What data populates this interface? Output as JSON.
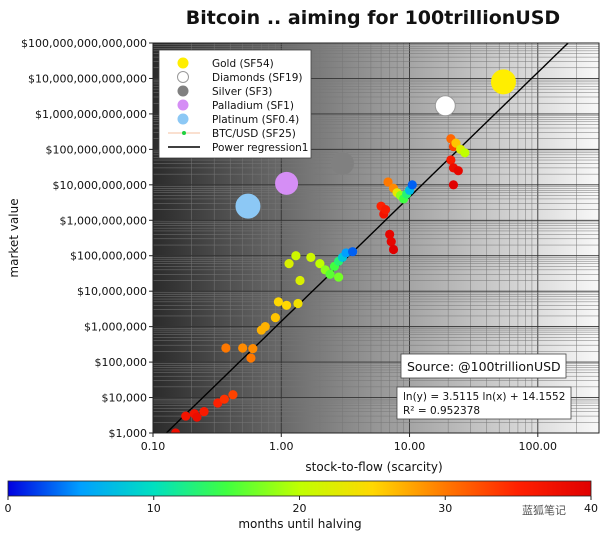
{
  "chart_data": {
    "type": "scatter",
    "title": "Bitcoin .. aiming for 100trillionUSD",
    "xlabel": "stock-to-flow (scarcity)",
    "ylabel": "market value",
    "x_scale": "log",
    "y_scale": "log",
    "xlim": [
      0.1,
      300
    ],
    "ylim": [
      1000,
      100000000000000
    ],
    "grid": true,
    "legend_position": "top-left",
    "x_ticks": [
      "0.10",
      "1.00",
      "10.00",
      "100.00"
    ],
    "y_ticks": [
      "$1,000",
      "$10,000",
      "$100,000",
      "$1,000,000",
      "$10,000,000",
      "$100,000,000",
      "$1,000,000,000",
      "$10,000,000,000",
      "$100,000,000,000",
      "$1,000,000,000,000",
      "$10,000,000,000,000",
      "$100,000,000,000,000"
    ],
    "series": [
      {
        "name": "Gold (SF54)",
        "color": "#ffee00",
        "edge": "#ffee00",
        "points": [
          {
            "x": 54,
            "y": 8000000000000
          }
        ]
      },
      {
        "name": "Diamonds (SF19)",
        "color": "#ffffff",
        "edge": "#999999",
        "points": [
          {
            "x": 19,
            "y": 1700000000000
          }
        ]
      },
      {
        "name": "Silver (SF3)",
        "color": "#808080",
        "edge": "#808080",
        "points": [
          {
            "x": 3,
            "y": 40000000000
          }
        ]
      },
      {
        "name": "Palladium (SF1)",
        "color": "#d58ef5",
        "edge": "#d58ef5",
        "points": [
          {
            "x": 1.1,
            "y": 11000000000
          }
        ]
      },
      {
        "name": "Platinum (SF0.4)",
        "color": "#8cc8f5",
        "edge": "#8cc8f5",
        "points": [
          {
            "x": 0.55,
            "y": 2500000000
          }
        ]
      }
    ],
    "btc_series": {
      "name": "BTC/USD (SF25)",
      "points": [
        {
          "x": 0.15,
          "y": 1000,
          "m": 38
        },
        {
          "x": 0.18,
          "y": 3000,
          "m": 37
        },
        {
          "x": 0.21,
          "y": 3500,
          "m": 37
        },
        {
          "x": 0.22,
          "y": 2800,
          "m": 38
        },
        {
          "x": 0.25,
          "y": 4000,
          "m": 36
        },
        {
          "x": 0.32,
          "y": 7000,
          "m": 35
        },
        {
          "x": 0.36,
          "y": 9000,
          "m": 34
        },
        {
          "x": 0.42,
          "y": 12000,
          "m": 33
        },
        {
          "x": 0.37,
          "y": 250000,
          "m": 30
        },
        {
          "x": 0.5,
          "y": 250000,
          "m": 29
        },
        {
          "x": 0.58,
          "y": 130000,
          "m": 30
        },
        {
          "x": 0.6,
          "y": 240000,
          "m": 29
        },
        {
          "x": 0.7,
          "y": 800000,
          "m": 27
        },
        {
          "x": 0.75,
          "y": 1000000,
          "m": 27
        },
        {
          "x": 0.9,
          "y": 1800000,
          "m": 26
        },
        {
          "x": 0.95,
          "y": 5000000,
          "m": 25
        },
        {
          "x": 1.1,
          "y": 4000000,
          "m": 25
        },
        {
          "x": 1.15,
          "y": 60000000,
          "m": 22
        },
        {
          "x": 1.3,
          "y": 100000000,
          "m": 21
        },
        {
          "x": 1.35,
          "y": 4500000,
          "m": 24
        },
        {
          "x": 1.4,
          "y": 20000000,
          "m": 22
        },
        {
          "x": 1.7,
          "y": 90000000,
          "m": 21
        },
        {
          "x": 2.0,
          "y": 60000000,
          "m": 20
        },
        {
          "x": 2.2,
          "y": 40000000,
          "m": 18
        },
        {
          "x": 2.4,
          "y": 30000000,
          "m": 16
        },
        {
          "x": 2.6,
          "y": 50000000,
          "m": 15
        },
        {
          "x": 2.8,
          "y": 70000000,
          "m": 13
        },
        {
          "x": 3.0,
          "y": 90000000,
          "m": 8
        },
        {
          "x": 3.2,
          "y": 120000000,
          "m": 5
        },
        {
          "x": 3.6,
          "y": 130000000,
          "m": 3
        },
        {
          "x": 2.8,
          "y": 25000000,
          "m": 17
        },
        {
          "x": 6.0,
          "y": 2500000000,
          "m": 35
        },
        {
          "x": 6.3,
          "y": 1500000000,
          "m": 37
        },
        {
          "x": 6.5,
          "y": 2000000000,
          "m": 36
        },
        {
          "x": 7.0,
          "y": 400000000,
          "m": 39
        },
        {
          "x": 7.2,
          "y": 250000000,
          "m": 39
        },
        {
          "x": 7.5,
          "y": 150000000,
          "m": 40
        },
        {
          "x": 6.8,
          "y": 12000000000,
          "m": 30
        },
        {
          "x": 7.5,
          "y": 8000000000,
          "m": 29
        },
        {
          "x": 8.0,
          "y": 6000000000,
          "m": 23
        },
        {
          "x": 8.5,
          "y": 5000000000,
          "m": 18
        },
        {
          "x": 9.0,
          "y": 4000000000,
          "m": 15
        },
        {
          "x": 9.5,
          "y": 5500000000,
          "m": 13
        },
        {
          "x": 10.0,
          "y": 7000000000,
          "m": 7
        },
        {
          "x": 10.5,
          "y": 10000000000,
          "m": 3
        },
        {
          "x": 21,
          "y": 200000000000,
          "m": 31
        },
        {
          "x": 22,
          "y": 120000000000,
          "m": 33
        },
        {
          "x": 21,
          "y": 50000000000,
          "m": 36
        },
        {
          "x": 22,
          "y": 30000000000,
          "m": 38
        },
        {
          "x": 22,
          "y": 10000000000,
          "m": 40
        },
        {
          "x": 24,
          "y": 25000000000,
          "m": 39
        },
        {
          "x": 23,
          "y": 150000000000,
          "m": 26
        },
        {
          "x": 25,
          "y": 100000000000,
          "m": 22
        },
        {
          "x": 27,
          "y": 80000000000,
          "m": 20
        }
      ]
    },
    "regression": {
      "name": "Power regression1",
      "equation": "ln(y) = 3.5115 ln(x) + 14.1552",
      "r2": "R² = 0.952378",
      "a": 3.5115,
      "b": 14.1552
    },
    "colorbar": {
      "label": "months until halving",
      "min": 0,
      "max": 40,
      "ticks": [
        "0",
        "10",
        "20",
        "30",
        "40"
      ],
      "colors": [
        "#0000e0",
        "#00a0ff",
        "#00e0c0",
        "#40ff40",
        "#c0ff00",
        "#ffd800",
        "#ff7800",
        "#ff2000",
        "#e00000"
      ]
    },
    "source_note": "Source: @100trillionUSD"
  },
  "watermark": "蓝狐笔记"
}
